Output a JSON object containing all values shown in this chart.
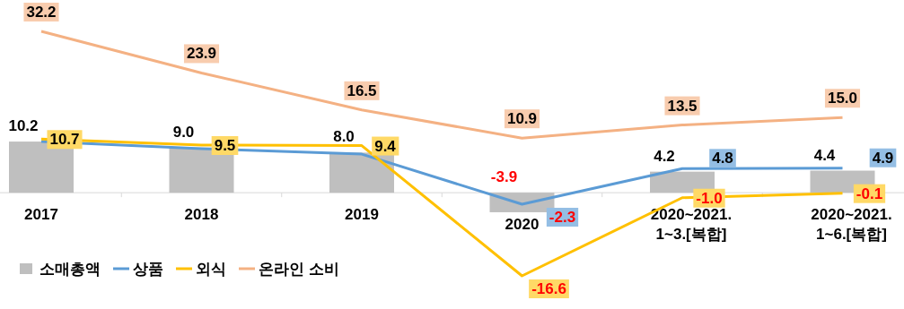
{
  "chart_data": {
    "type": "bar",
    "categories": [
      "2017",
      "2018",
      "2019",
      "2020",
      "2020~2021.\n1~3.[복합]",
      "2020~2021.\n1~6.[복합]"
    ],
    "series": [
      {
        "name": "소매총액",
        "color": "#bfbfbf",
        "values": [
          10.2,
          9.0,
          8.0,
          -3.9,
          4.2,
          4.4
        ],
        "value_labels": [
          "10.2",
          "9.0",
          "8.0",
          "-3.9",
          "4.2",
          "4.4"
        ]
      },
      {
        "name": "상품",
        "type": "line",
        "color": "#5b9bd5",
        "values": [
          10.2,
          8.8,
          7.7,
          -2.3,
          4.8,
          4.9
        ],
        "value_labels": [
          null,
          null,
          null,
          "-2.3",
          "4.8",
          "4.9"
        ]
      },
      {
        "name": "외식",
        "type": "line",
        "color": "#ffc000",
        "values": [
          10.7,
          9.5,
          9.4,
          -16.6,
          -1.0,
          -0.1
        ],
        "value_labels": [
          "10.7",
          "9.5",
          "9.4",
          "-16.6",
          "-1.0",
          "-0.1"
        ]
      },
      {
        "name": "온라인 소비",
        "type": "line",
        "color": "#f4b183",
        "values": [
          32.2,
          23.9,
          16.5,
          10.9,
          13.5,
          15.0
        ],
        "value_labels": [
          "32.2",
          "23.9",
          "16.5",
          "10.9",
          "13.5",
          "15.0"
        ]
      }
    ],
    "legend": "bottom left",
    "marker": "none"
  }
}
